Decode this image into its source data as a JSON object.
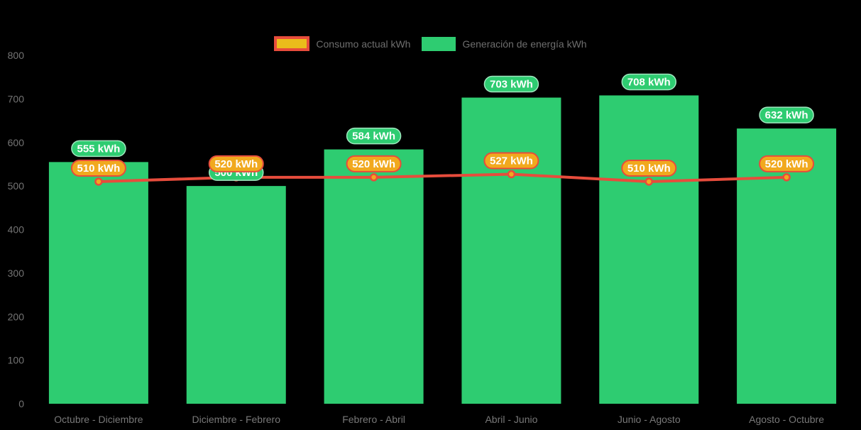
{
  "colors": {
    "background": "#000000",
    "bar": "#2ECC71",
    "bar_pill_fill": "#2ECC71",
    "bar_pill_border": "#9FE8BF",
    "line": "#E74C3C",
    "point_fill": "#F1A91E",
    "line_pill_fill": "#F1A91E",
    "line_pill_border": "#E74C3C",
    "legend_line_swatch_fill": "#EABC1B",
    "legend_line_swatch_border": "#E74C3C",
    "legend_bar_swatch_fill": "#2ECC71",
    "axis_text": "#747474",
    "legend_text": "#6E6E6E",
    "pill_text": "#FFFFFF"
  },
  "legend": {
    "items": [
      {
        "label": "Consumo actual kWh",
        "series": "line"
      },
      {
        "label": "Generación de energía kWh",
        "series": "bar"
      }
    ]
  },
  "chart_data": {
    "type": "bar",
    "subtype": "bar-with-line-overlay",
    "title": "",
    "xlabel": "",
    "ylabel": "",
    "categories": [
      "Octubre - Diciembre",
      "Diciembre - Febrero",
      "Febrero - Abril",
      "Abril - Junio",
      "Junio - Agosto",
      "Agosto - Octubre"
    ],
    "series": [
      {
        "name": "Generación de energía kWh",
        "type": "bar",
        "color": "#2ECC71",
        "values": [
          555,
          500,
          584,
          703,
          708,
          632
        ],
        "data_labels": [
          "555 kWh",
          "500 kWh",
          "584 kWh",
          "703 kWh",
          "708 kWh",
          "632 kWh"
        ]
      },
      {
        "name": "Consumo actual kWh",
        "type": "line",
        "color": "#E74C3C",
        "point_color": "#F1A91E",
        "values": [
          510,
          520,
          520,
          527,
          510,
          520
        ],
        "data_labels": [
          "510 kWh",
          "520 kWh",
          "520 kWh",
          "527 kWh",
          "510 kWh",
          "520 kWh"
        ]
      }
    ],
    "ylim": [
      0,
      800
    ],
    "yticks": [
      0,
      100,
      200,
      300,
      400,
      500,
      600,
      700,
      800
    ],
    "grid": false,
    "legend_position": "top"
  }
}
